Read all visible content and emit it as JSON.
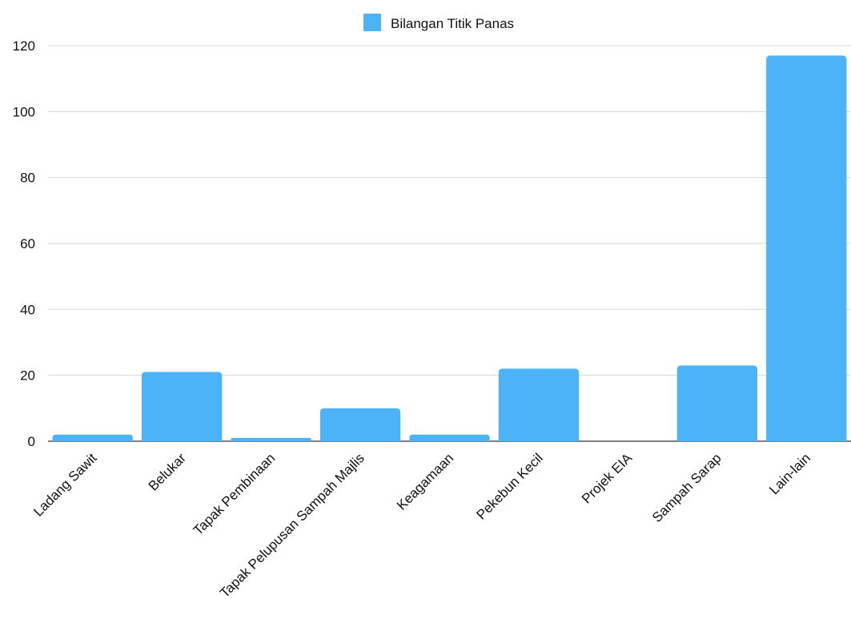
{
  "chart_data": {
    "type": "bar",
    "title": "",
    "xlabel": "",
    "ylabel": "",
    "categories": [
      "Ladang Sawit",
      "Belukar",
      "Tapak Pembinaan",
      "Tapak Pelupusan Sampah Majlis",
      "Keagamaan",
      "Pekebun Kecil",
      "Projek EIA",
      "Sampah Sarap",
      "Lain-lain"
    ],
    "series": [
      {
        "name": "Bilangan Titik Panas",
        "values": [
          2,
          21,
          1,
          10,
          2,
          22,
          0,
          23,
          117
        ]
      }
    ],
    "ylim": [
      0,
      120
    ],
    "yticks": [
      0,
      20,
      40,
      60,
      80,
      100,
      120
    ],
    "grid": true,
    "legend_position": "top-center",
    "colors": {
      "bar": "#4db3f9",
      "grid": "#d6d6d6",
      "axis": "#333333",
      "text": "#111111"
    }
  }
}
